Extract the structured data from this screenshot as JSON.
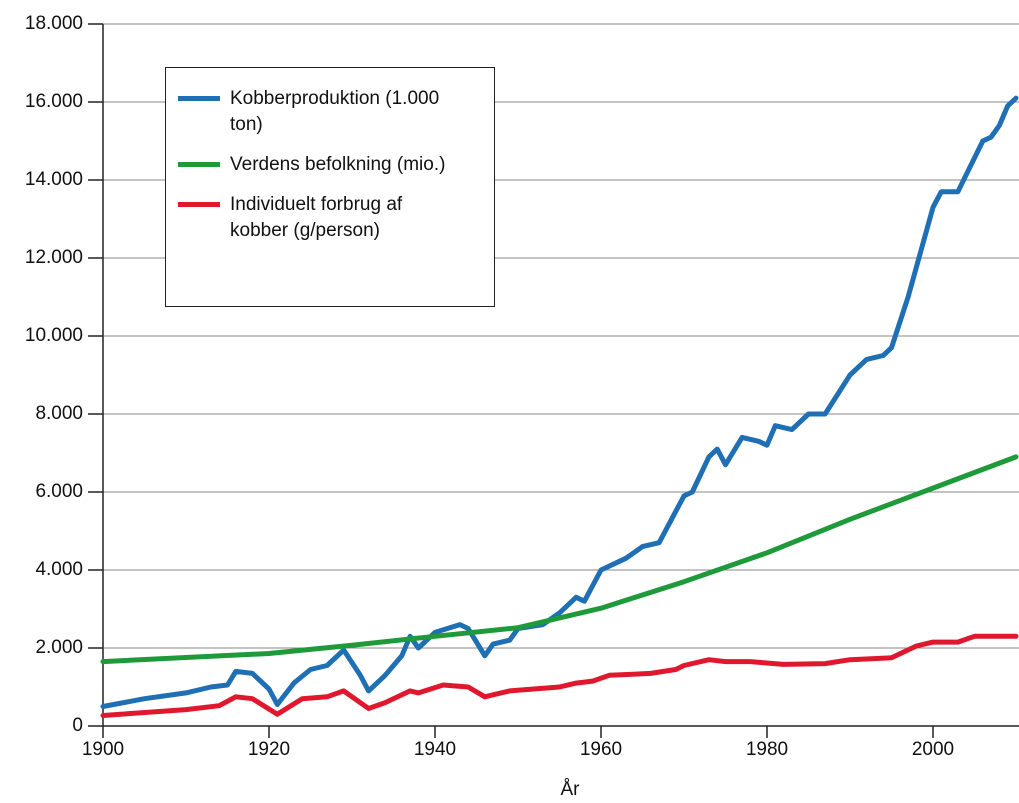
{
  "chart_data": {
    "type": "line",
    "xlabel": "År",
    "xlim": [
      1900,
      2010
    ],
    "xticks": [
      1900,
      1920,
      1940,
      1960,
      1980,
      2000
    ],
    "ylim": [
      0,
      18000
    ],
    "yticks": [
      0,
      {
        "value": 2000,
        "label": "2.000"
      },
      {
        "value": 4000,
        "label": "4.000"
      },
      {
        "value": 6000,
        "label": "6.000"
      },
      {
        "value": 8000,
        "label": "8.000"
      },
      {
        "value": 10000,
        "label": "10.000"
      },
      {
        "value": 12000,
        "label": "12.000"
      },
      {
        "value": 14000,
        "label": "14.000"
      },
      {
        "value": 16000,
        "label": "16.000"
      },
      {
        "value": 18000,
        "label": "18.000"
      }
    ],
    "grid": true,
    "legend": "upper left",
    "series": [
      {
        "name": "Kobberproduktion (1.000 ton)",
        "color": "#1f6fb4",
        "x": [
          1900,
          1905,
          1910,
          1913,
          1915,
          1916,
          1918,
          1920,
          1921,
          1923,
          1925,
          1927,
          1929,
          1931,
          1932,
          1934,
          1936,
          1937,
          1938,
          1940,
          1943,
          1944,
          1946,
          1947,
          1949,
          1950,
          1953,
          1955,
          1957,
          1958,
          1960,
          1963,
          1965,
          1967,
          1970,
          1971,
          1973,
          1974,
          1975,
          1977,
          1979,
          1980,
          1981,
          1983,
          1985,
          1987,
          1990,
          1992,
          1994,
          1995,
          1997,
          2000,
          2001,
          2003,
          2006,
          2007,
          2008,
          2009,
          2010
        ],
        "values": [
          500,
          700,
          850,
          1000,
          1050,
          1400,
          1350,
          950,
          550,
          1100,
          1450,
          1550,
          1950,
          1300,
          900,
          1300,
          1800,
          2300,
          2000,
          2400,
          2600,
          2500,
          1800,
          2100,
          2200,
          2500,
          2600,
          2900,
          3300,
          3200,
          4000,
          4300,
          4600,
          4700,
          5900,
          6000,
          6900,
          7100,
          6700,
          7400,
          7300,
          7200,
          7700,
          7600,
          8000,
          8000,
          9000,
          9400,
          9500,
          9700,
          11000,
          13300,
          13700,
          13700,
          15000,
          15100,
          15400,
          15900,
          16100
        ]
      },
      {
        "name": "Verdens befolkning (mio.)",
        "color": "#1f9a3a",
        "x": [
          1900,
          1920,
          1930,
          1940,
          1950,
          1960,
          1970,
          1980,
          1990,
          2000,
          2010
        ],
        "values": [
          1650,
          1860,
          2070,
          2300,
          2520,
          3020,
          3700,
          4440,
          5300,
          6100,
          6900
        ]
      },
      {
        "name": "Individuelt forbrug af kobber (g/person)",
        "color": "#e0182d",
        "x": [
          1900,
          1910,
          1914,
          1916,
          1918,
          1921,
          1924,
          1927,
          1929,
          1932,
          1934,
          1937,
          1938,
          1941,
          1944,
          1946,
          1949,
          1955,
          1957,
          1959,
          1961,
          1966,
          1969,
          1970,
          1973,
          1975,
          1978,
          1982,
          1987,
          1990,
          1995,
          1998,
          2000,
          2003,
          2005,
          2010
        ],
        "values": [
          270,
          420,
          520,
          750,
          700,
          300,
          700,
          750,
          900,
          450,
          600,
          900,
          850,
          1050,
          1000,
          750,
          900,
          1000,
          1100,
          1150,
          1300,
          1350,
          1450,
          1550,
          1700,
          1650,
          1650,
          1580,
          1600,
          1700,
          1750,
          2050,
          2150,
          2150,
          2300,
          2300
        ]
      }
    ]
  }
}
